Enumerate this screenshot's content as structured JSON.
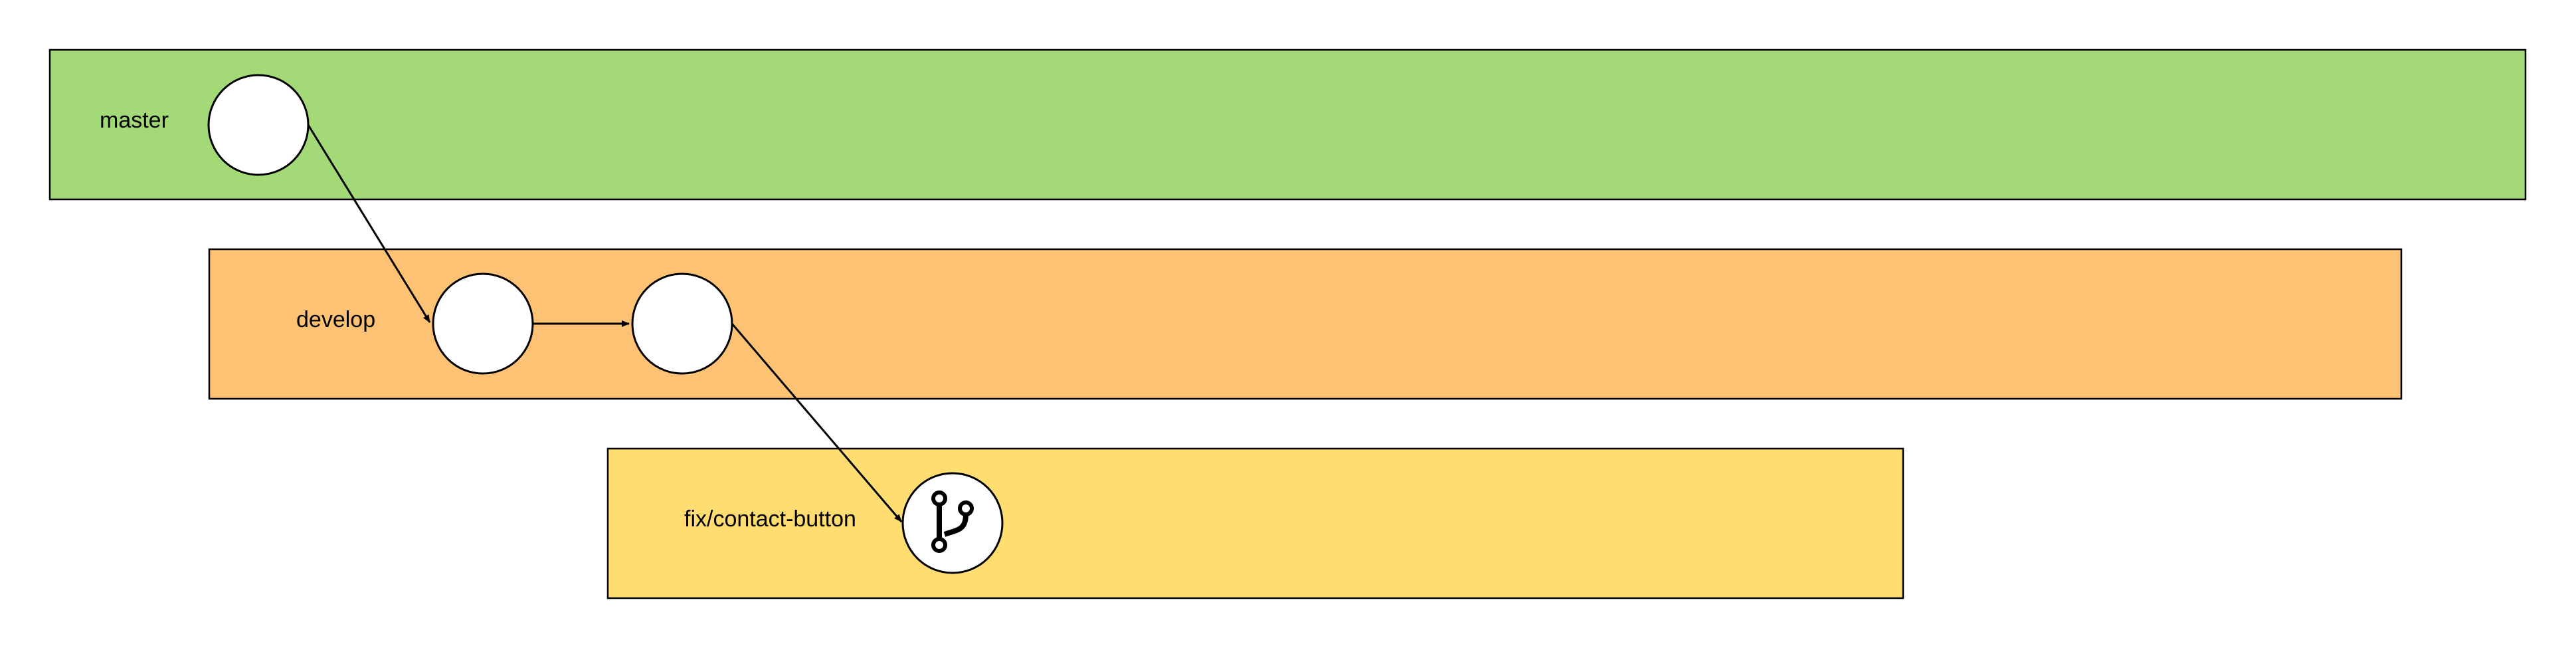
{
  "lanes": {
    "master": {
      "label": "master",
      "color": "#a3d977"
    },
    "develop": {
      "label": "develop",
      "color": "#fdc274"
    },
    "fix": {
      "label": "fix/contact-button",
      "color": "#ffdd71"
    }
  },
  "nodes": [
    {
      "id": "master-commit",
      "lane": "master",
      "icon": null
    },
    {
      "id": "develop-commit-1",
      "lane": "develop",
      "icon": null
    },
    {
      "id": "develop-commit-2",
      "lane": "develop",
      "icon": null
    },
    {
      "id": "fix-commit",
      "lane": "fix",
      "icon": "git-branch-icon"
    }
  ],
  "edges": [
    {
      "from": "master-commit",
      "to": "develop-commit-1"
    },
    {
      "from": "develop-commit-1",
      "to": "develop-commit-2"
    },
    {
      "from": "develop-commit-2",
      "to": "fix-commit"
    }
  ],
  "colors": {
    "stroke": "#000000",
    "node_fill": "#ffffff"
  }
}
